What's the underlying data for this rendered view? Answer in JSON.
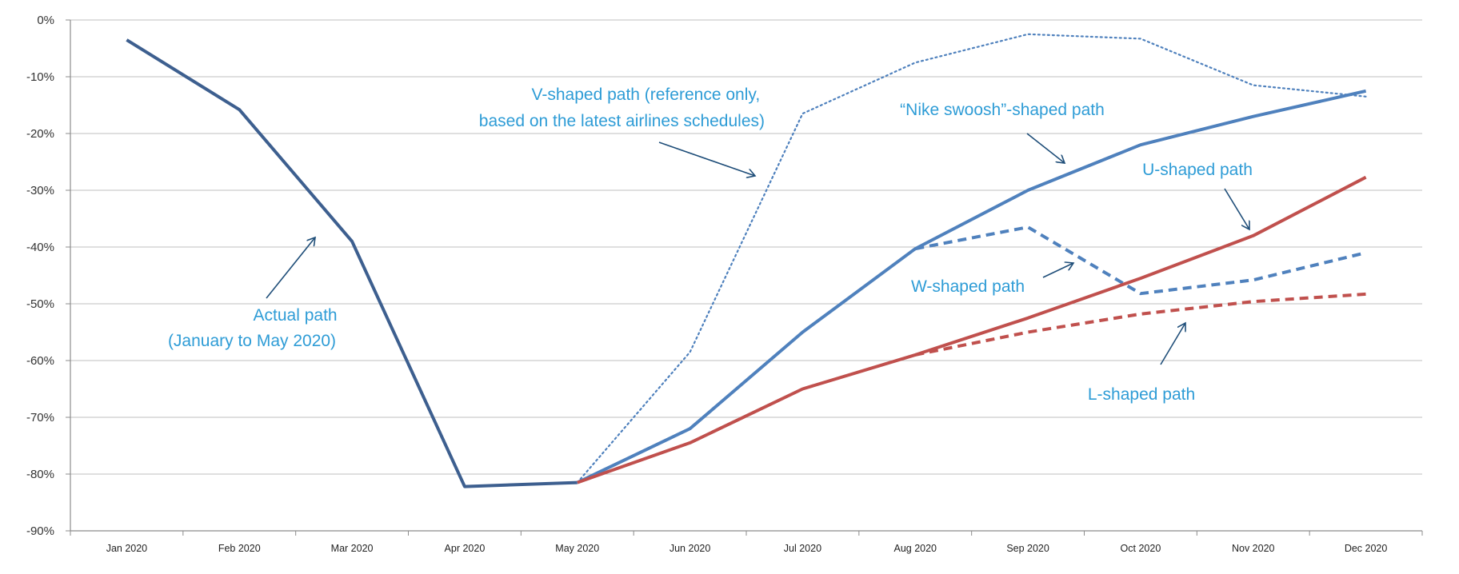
{
  "chart_data": {
    "type": "line",
    "categories": [
      "Jan 2020",
      "Feb 2020",
      "Mar 2020",
      "Apr 2020",
      "May 2020",
      "Jun 2020",
      "Jul 2020",
      "Aug 2020",
      "Sep 2020",
      "Oct 2020",
      "Nov 2020",
      "Dec 2020"
    ],
    "y_tick_labels": [
      "0%",
      "-10%",
      "-20%",
      "-30%",
      "-40%",
      "-50%",
      "-60%",
      "-70%",
      "-80%",
      "-90%"
    ],
    "ylim": [
      -90,
      0
    ],
    "grid": true,
    "legend": "none",
    "colors": {
      "blue": "#4f81bd",
      "dark_blue": "#3d5f8f",
      "red": "#c0504d",
      "annotation": "#2e9cd6",
      "arrow": "#1f4e79",
      "grid": "#bfbfbf"
    },
    "series": [
      {
        "values": [
          -3.5,
          -15.8,
          -39,
          -82.2,
          -81.5,
          null,
          null,
          null,
          null,
          null,
          null,
          null
        ],
        "color": "#3d5f8f",
        "style": "solid"
      },
      {
        "values": [
          null,
          null,
          null,
          null,
          -81.5,
          -58.5,
          -16.5,
          -7.5,
          -2.5,
          -3.3,
          -11.5,
          -13.5
        ],
        "color": "#4f81bd",
        "style": "dotted"
      },
      {
        "values": [
          null,
          null,
          null,
          null,
          -81.5,
          -72,
          -55,
          -40.3,
          -30,
          -22,
          -17,
          -12.5
        ],
        "color": "#4f81bd",
        "style": "solid"
      },
      {
        "values": [
          null,
          null,
          null,
          null,
          null,
          null,
          null,
          -40.3,
          -36.5,
          -48.2,
          -45.8,
          -41
        ],
        "color": "#4f81bd",
        "style": "dashed"
      },
      {
        "values": [
          null,
          null,
          null,
          null,
          -81.5,
          -74.5,
          -65,
          -59,
          -52.5,
          -45.5,
          -38,
          -27.7
        ],
        "color": "#c0504d",
        "style": "solid"
      },
      {
        "values": [
          null,
          null,
          null,
          null,
          null,
          null,
          null,
          -59,
          -55,
          -51.8,
          -49.6,
          -48.3
        ],
        "color": "#c0504d",
        "style": "dashed"
      }
    ],
    "annotations": [
      {
        "id": "actual",
        "lines": [
          "Actual path",
          "(January to May 2020)"
        ]
      },
      {
        "id": "v",
        "lines": [
          "V-shaped path (reference only,",
          "based on the latest airlines schedules)"
        ]
      },
      {
        "id": "nike",
        "lines": [
          "“Nike swoosh”-shaped path"
        ]
      },
      {
        "id": "u",
        "lines": [
          "U-shaped path"
        ]
      },
      {
        "id": "w",
        "lines": [
          "W-shaped path"
        ]
      },
      {
        "id": "l",
        "lines": [
          "L-shaped path"
        ]
      }
    ]
  }
}
